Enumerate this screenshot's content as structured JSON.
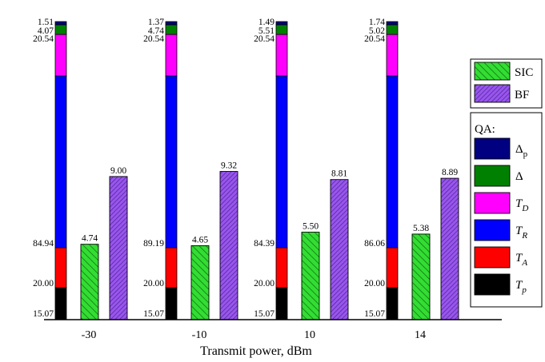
{
  "chart_data": {
    "type": "bar",
    "xlabel": "Transmit power, dBm",
    "categories": [
      "-30",
      "-10",
      "10",
      "14"
    ],
    "stack_segments": [
      "T_p",
      "T_A",
      "T_R",
      "T_D",
      "Δ",
      "Δ_p"
    ],
    "qa_stacks": [
      {
        "category": "-30",
        "values": [
          15.07,
          20.0,
          84.94,
          20.54,
          4.07,
          1.51
        ],
        "labels": [
          "15.07",
          "20.00",
          "84.94",
          "20.54",
          "4.07",
          "1.51"
        ]
      },
      {
        "category": "-10",
        "values": [
          15.07,
          20.0,
          89.19,
          20.54,
          4.74,
          1.37
        ],
        "labels": [
          "15.07",
          "20.00",
          "89.19",
          "20.54",
          "4.74",
          "1.37"
        ]
      },
      {
        "category": "10",
        "values": [
          15.07,
          20.0,
          84.39,
          20.54,
          5.51,
          1.49
        ],
        "labels": [
          "15.07",
          "20.00",
          "84.39",
          "20.54",
          "5.51",
          "1.49"
        ]
      },
      {
        "category": "14",
        "values": [
          15.07,
          20.0,
          86.06,
          20.54,
          5.02,
          1.74
        ],
        "labels": [
          "15.07",
          "20.00",
          "86.06",
          "20.54",
          "5.02",
          "1.74"
        ]
      }
    ],
    "series": [
      {
        "name": "SIC",
        "values": [
          4.74,
          4.65,
          5.5,
          5.38
        ],
        "labels": [
          "4.74",
          "4.65",
          "5.50",
          "5.38"
        ],
        "color": "#33dd33",
        "hatch": "#117711"
      },
      {
        "name": "BF",
        "values": [
          9.0,
          9.32,
          8.81,
          8.89
        ],
        "labels": [
          "9.00",
          "9.32",
          "8.81",
          "8.89"
        ],
        "color": "#9955ee",
        "hatch": "#442288"
      }
    ],
    "legend_position": "right",
    "legend_sections": [
      {
        "title": "",
        "entries": [
          {
            "key": "SIC"
          },
          {
            "key": "BF"
          }
        ]
      },
      {
        "title": "QA:",
        "entries": [
          {
            "key": "Δ_p"
          },
          {
            "key": "Δ"
          },
          {
            "key": "T_D"
          },
          {
            "key": "T_R"
          },
          {
            "key": "T_A"
          },
          {
            "key": "T_p"
          }
        ]
      }
    ],
    "segment_colors": {
      "T_p": "#000000",
      "T_A": "#ff0000",
      "T_R": "#0000ff",
      "T_D": "#ff00ff",
      "Δ": "#008000",
      "Δ_p": "#000080"
    },
    "legend_labels": {
      "SIC": {
        "main": "SIC",
        "sub": ""
      },
      "BF": {
        "main": "BF",
        "sub": ""
      },
      "Δ_p": {
        "main": "Δ",
        "sub": "p",
        "italic": false
      },
      "Δ": {
        "main": "Δ",
        "sub": "",
        "italic": false
      },
      "T_D": {
        "main": "T",
        "sub": "D",
        "italic": true
      },
      "T_R": {
        "main": "T",
        "sub": "R",
        "italic": true
      },
      "T_A": {
        "main": "T",
        "sub": "A",
        "italic": true
      },
      "T_p": {
        "main": "T",
        "sub": "p",
        "italic": true
      }
    },
    "grid": false
  }
}
